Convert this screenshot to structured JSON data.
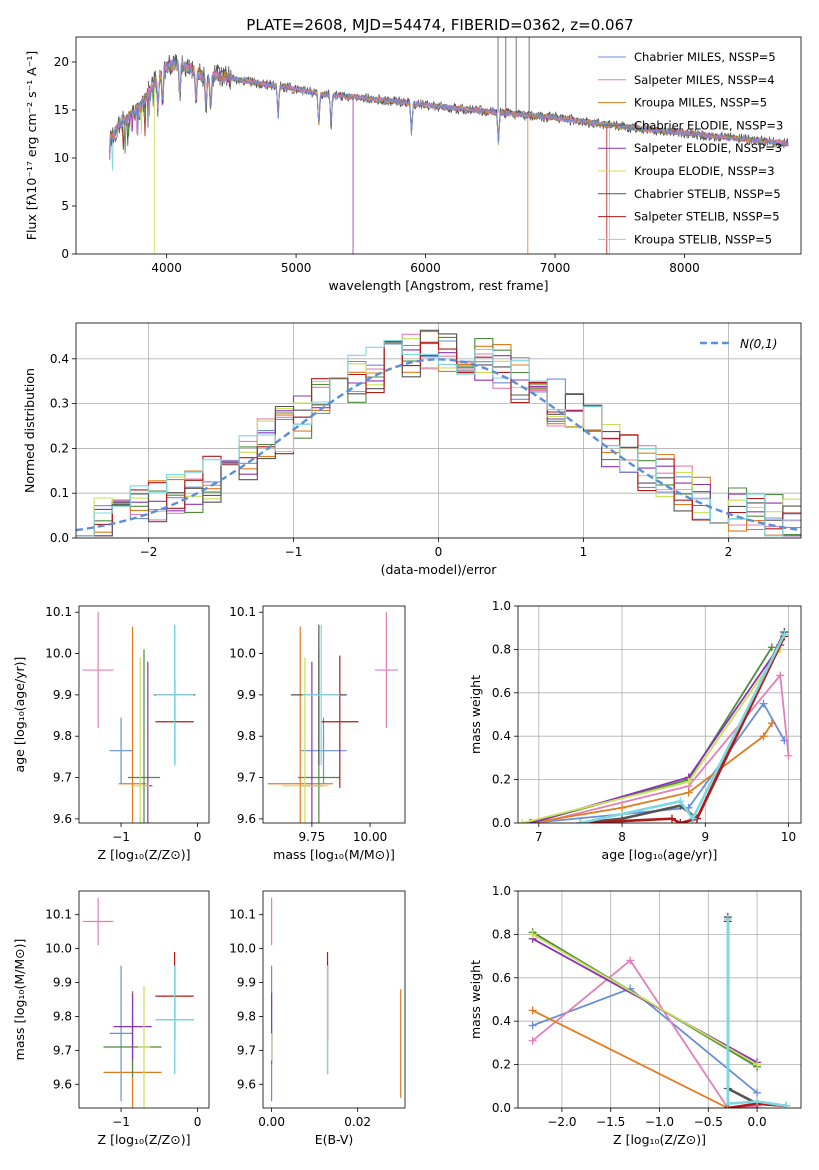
{
  "figure": {
    "title": "PLATE=2608, MJD=54474, FIBERID=0362, z=0.067",
    "colors": [
      "#6a8fd8",
      "#e27fb8",
      "#e07b1f",
      "#4f8a3e",
      "#8b33b5",
      "#c8e05a",
      "#555555",
      "#b51818",
      "#7fd8e0"
    ]
  },
  "chart_data": [
    {
      "id": "spectrum",
      "type": "line",
      "title": "PLATE=2608, MJD=54474, FIBERID=0362, z=0.067",
      "xlabel": "wavelength [Angstrom, rest frame]",
      "ylabel": "Flux [fλ10⁻¹⁷ erg cm⁻² s⁻¹ A⁻¹]",
      "xlim": [
        3300,
        8900
      ],
      "ylim": [
        0,
        22.6
      ],
      "xticks": [
        "4000",
        "5000",
        "6000",
        "7000",
        "8000"
      ],
      "yticks": [
        "0",
        "5",
        "10",
        "15",
        "20"
      ],
      "legend": "top-right",
      "legend_entries": [
        "Chabrier MILES, NSSP=5",
        "Salpeter MILES, NSSP=4",
        "Kroupa MILES, NSSP=5",
        "Chabrier ELODIE, NSSP=3",
        "Salpeter ELODIE, NSSP=3",
        "Kroupa ELODIE, NSSP=3",
        "Chabrier STELIB, NSSP=5",
        "Salpeter STELIB, NSSP=5",
        "Kroupa STELIB, NSSP=5"
      ],
      "continuum": {
        "x": [
          3550,
          3650,
          3700,
          3800,
          3900,
          3950,
          4000,
          4100,
          4200,
          4300,
          4400,
          4500,
          4700,
          5000,
          5200,
          5500,
          6000,
          6500,
          7000,
          7500,
          8000,
          8500,
          8800
        ],
        "y": [
          11.5,
          13.8,
          14.2,
          15.4,
          17.8,
          18.5,
          19.5,
          19.8,
          19.2,
          18.3,
          18.6,
          18.3,
          17.8,
          17.2,
          16.6,
          16.3,
          15.5,
          14.8,
          14.2,
          13.3,
          12.6,
          11.9,
          11.5
        ]
      },
      "absorption_lines": [
        3934,
        3969,
        4102,
        4227,
        4304,
        4340,
        4861,
        5175,
        5270,
        5892,
        6563
      ]
    },
    {
      "id": "residuals",
      "type": "area",
      "xlabel": "(data-model)/error",
      "ylabel": "Normed distribution",
      "xlim": [
        -2.5,
        2.5
      ],
      "ylim": [
        0,
        0.48
      ],
      "xticks": [
        "−2",
        "−1",
        "0",
        "1",
        "2"
      ],
      "yticks": [
        "0.0",
        "0.1",
        "0.2",
        "0.3",
        "0.4"
      ],
      "legend": "top-right",
      "legend_entries": [
        "N(0,1)"
      ],
      "grid": true
    },
    {
      "id": "age-vs-z",
      "type": "scatter",
      "xlabel": "Z [log₁₀(Z/Z⊙)]",
      "ylabel": "age  [log₁₀(age/yr)]",
      "xlim": [
        -1.55,
        0.15
      ],
      "ylim": [
        9.59,
        10.115
      ],
      "xticks": [
        "−1",
        "0"
      ],
      "yticks": [
        "9.6",
        "9.7",
        "9.8",
        "9.9",
        "10.0",
        "10.1"
      ],
      "points": [
        {
          "x": -1.0,
          "y": 9.765,
          "ex": 0.15,
          "ey": 0.08
        },
        {
          "x": -1.3,
          "y": 9.96,
          "ex": 0.2,
          "ey": 0.14
        },
        {
          "x": -0.85,
          "y": 9.685,
          "ex": 0.18,
          "ey": 0.38
        },
        {
          "x": -0.7,
          "y": 9.7,
          "ex": 0.21,
          "ey": 0.31
        },
        {
          "x": -0.65,
          "y": 9.68,
          "ex": 0.06,
          "ey": 0.3
        },
        {
          "x": -0.75,
          "y": 9.68,
          "ex": 0.12,
          "ey": 0.31
        },
        {
          "x": -0.3,
          "y": 9.9,
          "ex": 0.27,
          "ey": 0.17
        },
        {
          "x": -0.3,
          "y": 9.835,
          "ex": 0.25,
          "ey": 0.1
        },
        {
          "x": -0.3,
          "y": 9.9,
          "ex": 0.25,
          "ey": 0.17
        }
      ]
    },
    {
      "id": "age-vs-mass",
      "type": "scatter",
      "xlabel": "mass [log₁₀(M/M⊙)]",
      "ylabel": "",
      "xlim": [
        9.54,
        10.15
      ],
      "ylim": [
        9.59,
        10.115
      ],
      "xticks": [
        "9.75",
        "10.00"
      ],
      "yticks": [
        "9.6",
        "9.7",
        "9.8",
        "9.9",
        "10.0",
        "10.1"
      ],
      "points": [
        {
          "x": 9.8,
          "y": 9.765,
          "ex": 0.1,
          "ey": 0.08
        },
        {
          "x": 10.07,
          "y": 9.96,
          "ex": 0.05,
          "ey": 0.14
        },
        {
          "x": 9.7,
          "y": 9.685,
          "ex": 0.14,
          "ey": 0.38
        },
        {
          "x": 9.78,
          "y": 9.7,
          "ex": 0.09,
          "ey": 0.31
        },
        {
          "x": 9.75,
          "y": 9.68,
          "ex": 0.05,
          "ey": 0.3
        },
        {
          "x": 9.72,
          "y": 9.68,
          "ex": 0.1,
          "ey": 0.31
        },
        {
          "x": 9.78,
          "y": 9.9,
          "ex": 0.12,
          "ey": 0.17
        },
        {
          "x": 9.87,
          "y": 9.835,
          "ex": 0.08,
          "ey": 0.16
        },
        {
          "x": 9.79,
          "y": 9.9,
          "ex": 0.08,
          "ey": 0.17
        }
      ]
    },
    {
      "id": "massweight-vs-age",
      "type": "line",
      "xlabel": "age  [log₁₀(age/yr)]",
      "ylabel": "mass weight",
      "xlim": [
        6.75,
        10.15
      ],
      "ylim": [
        0,
        1.0
      ],
      "xticks": [
        "7",
        "8",
        "9",
        "10"
      ],
      "yticks": [
        "0.0",
        "0.2",
        "0.4",
        "0.6",
        "0.8",
        "1.0"
      ],
      "grid": true,
      "series": [
        {
          "x": [
            6.9,
            8.8,
            9.7,
            9.95
          ],
          "y": [
            0,
            0.07,
            0.55,
            0.38
          ]
        },
        {
          "x": [
            7.0,
            8.8,
            9.9,
            10.0
          ],
          "y": [
            0,
            0.17,
            0.68,
            0.31
          ]
        },
        {
          "x": [
            6.9,
            8.0,
            8.8,
            9.7,
            9.8
          ],
          "y": [
            0,
            0.07,
            0.14,
            0.4,
            0.46
          ]
        },
        {
          "x": [
            6.9,
            8.8,
            9.8
          ],
          "y": [
            0,
            0.2,
            0.81
          ]
        },
        {
          "x": [
            6.9,
            8.8,
            9.9
          ],
          "y": [
            0,
            0.21,
            0.82
          ]
        },
        {
          "x": [
            6.8,
            8.8,
            9.9
          ],
          "y": [
            0,
            0.19,
            0.8
          ]
        },
        {
          "x": [
            7.5,
            8.0,
            8.7,
            8.9,
            9.95
          ],
          "y": [
            0,
            0.02,
            0.08,
            0.02,
            0.88
          ]
        },
        {
          "x": [
            7.5,
            8.6,
            8.7,
            8.9,
            9.95
          ],
          "y": [
            0,
            0.02,
            0.0,
            0.02,
            0.86
          ]
        },
        {
          "x": [
            7.5,
            8.7,
            8.85,
            9.95
          ],
          "y": [
            0,
            0.1,
            0.02,
            0.87
          ]
        }
      ]
    },
    {
      "id": "mass-vs-z",
      "type": "scatter",
      "xlabel": "Z [log₁₀(Z/Z⊙)]",
      "ylabel": "mass [log₁₀(M/M⊙)]",
      "xlim": [
        -1.55,
        0.15
      ],
      "ylim": [
        9.53,
        10.17
      ],
      "xticks": [
        "−1",
        "0"
      ],
      "yticks": [
        "9.6",
        "9.7",
        "9.8",
        "9.9",
        "10.0",
        "10.1"
      ],
      "points": [
        {
          "x": -1.0,
          "y": 9.75,
          "ex": 0.15,
          "ey": 0.2
        },
        {
          "x": -1.3,
          "y": 10.08,
          "ex": 0.2,
          "ey": 0.07
        },
        {
          "x": -0.85,
          "y": 9.635,
          "ex": 0.38,
          "ey": 0.24
        },
        {
          "x": -0.85,
          "y": 9.71,
          "ex": 0.38,
          "ey": 0.09
        },
        {
          "x": -0.85,
          "y": 9.77,
          "ex": 0.25,
          "ey": 0.1
        },
        {
          "x": -0.7,
          "y": 9.71,
          "ex": 0.08,
          "ey": 0.18
        },
        {
          "x": -0.3,
          "y": 9.79,
          "ex": 0.25,
          "ey": 0.16
        },
        {
          "x": -0.3,
          "y": 9.86,
          "ex": 0.25,
          "ey": 0.13
        },
        {
          "x": -0.3,
          "y": 9.79,
          "ex": 0.25,
          "ey": 0.16
        }
      ]
    },
    {
      "id": "mass-vs-ebv",
      "type": "scatter",
      "xlabel": "E(B-V)",
      "ylabel": "",
      "xlim": [
        -0.002,
        0.031
      ],
      "ylim": [
        9.53,
        10.17
      ],
      "xticks": [
        "0.00",
        "0.02"
      ],
      "yticks": [
        "9.6",
        "9.7",
        "9.8",
        "9.9",
        "10.0",
        "10.1"
      ],
      "points": [
        {
          "x": 0.0,
          "y": 9.75,
          "ey": 0.2
        },
        {
          "x": 0.0,
          "y": 10.08,
          "ey": 0.07
        },
        {
          "x": 0.03,
          "y": 9.72,
          "ey": 0.16
        },
        {
          "x": 0.0,
          "y": 9.71,
          "ey": 0.05
        },
        {
          "x": 0.0,
          "y": 9.77,
          "ey": 0.1
        },
        {
          "x": 0.0,
          "y": 9.71,
          "ey": 0.04
        },
        {
          "x": 0.013,
          "y": 9.79,
          "ey": 0.16
        },
        {
          "x": 0.013,
          "y": 9.86,
          "ey": 0.13
        },
        {
          "x": 0.013,
          "y": 9.79,
          "ey": 0.16
        }
      ]
    },
    {
      "id": "massweight-vs-z",
      "type": "line",
      "xlabel": "Z [log₁₀(Z/Z⊙)]",
      "ylabel": "mass weight",
      "xlim": [
        -2.45,
        0.45
      ],
      "ylim": [
        0,
        1.0
      ],
      "xticks": [
        "−2.0",
        "−1.5",
        "−1.0",
        "−0.5",
        "0.0"
      ],
      "yticks": [
        "0.0",
        "0.2",
        "0.4",
        "0.6",
        "0.8",
        "1.0"
      ],
      "grid": true,
      "series": [
        {
          "x": [
            -2.3,
            -1.3,
            0.0
          ],
          "y": [
            0.38,
            0.55,
            0.07
          ]
        },
        {
          "x": [
            -2.3,
            -1.3,
            -0.3,
            0.0
          ],
          "y": [
            0.31,
            0.68,
            0.0,
            0.01
          ]
        },
        {
          "x": [
            -2.3,
            -0.3,
            0.0
          ],
          "y": [
            0.45,
            0.0,
            0.0
          ]
        },
        {
          "x": [
            -2.3,
            0.0
          ],
          "y": [
            0.81,
            0.19
          ]
        },
        {
          "x": [
            -2.3,
            0.0
          ],
          "y": [
            0.78,
            0.21
          ]
        },
        {
          "x": [
            -2.3,
            0.0
          ],
          "y": [
            0.8,
            0.2
          ]
        },
        {
          "x": [
            -0.3,
            -0.3,
            0.0,
            0.3
          ],
          "y": [
            0.88,
            0.09,
            0.02,
            0.01
          ]
        },
        {
          "x": [
            -0.3,
            -0.3,
            0.0,
            0.3
          ],
          "y": [
            0.86,
            0.0,
            0.02,
            0.01
          ]
        },
        {
          "x": [
            -0.3,
            -0.3,
            0.0,
            0.3
          ],
          "y": [
            0.87,
            0.02,
            0.03,
            0.01
          ]
        }
      ]
    }
  ]
}
